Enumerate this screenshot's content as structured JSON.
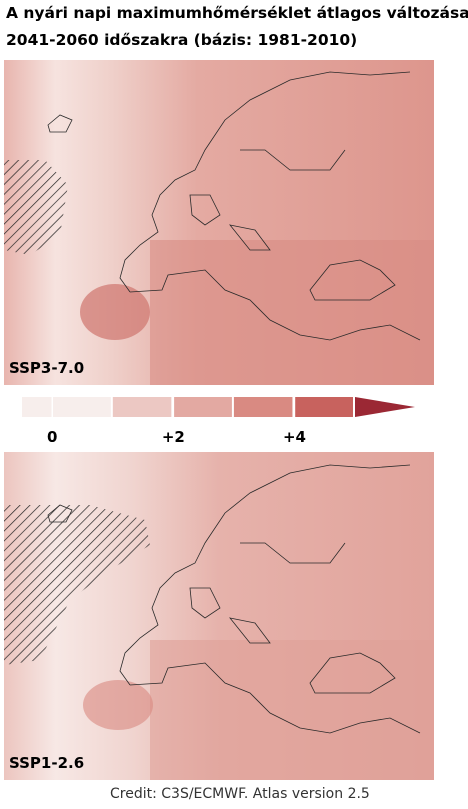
{
  "header": {
    "title_lines": [
      "A nyári napi maximumhőmérséklet átlagos változása",
      "2041-2060 időszakra (bázis: 1981-2010)"
    ]
  },
  "panels": [
    {
      "label": "SSP3-7.0"
    },
    {
      "label": "SSP1-2.6"
    }
  ],
  "colorbar": {
    "bins": [
      -0.5,
      1,
      2,
      3,
      4,
      5
    ],
    "colors": [
      "#f7eeec",
      "#ecc8c3",
      "#e3a9a2",
      "#d98a82",
      "#c8625e"
    ],
    "extend_color": "#9b2834",
    "ticks": [
      {
        "value": 0,
        "label": "0"
      },
      {
        "value": 2,
        "label": "+2"
      },
      {
        "value": 4,
        "label": "+4"
      }
    ]
  },
  "footer": {
    "credit": "Credit: C3S/ECMWF. Atlas version 2.5"
  }
}
